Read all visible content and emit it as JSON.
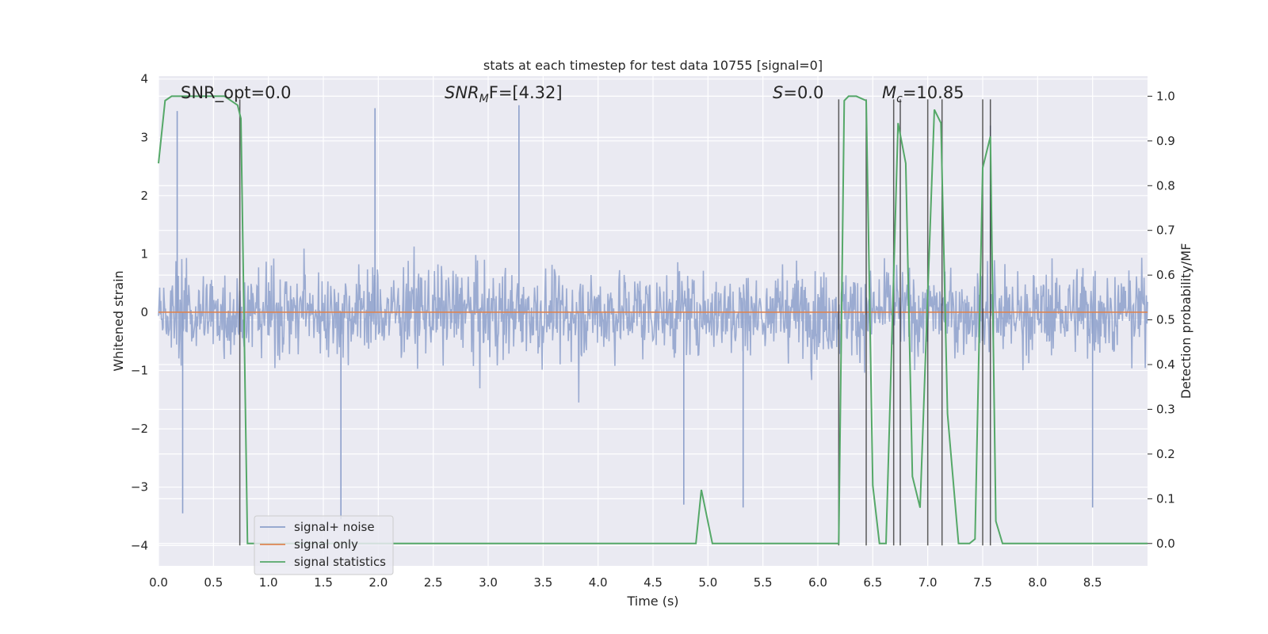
{
  "chart_data": {
    "type": "line",
    "title": "stats at each timestep for test data 10755 [signal=0]",
    "xlabel": "Time (s)",
    "ylabel": "Whitened strain",
    "y2label": "Detection probability/MF",
    "xlim": [
      0.0,
      9.0
    ],
    "ylim": [
      -4.35,
      4.05
    ],
    "y2lim": [
      -0.05,
      1.045
    ],
    "xticks": [
      "0.0",
      "0.5",
      "1.0",
      "1.5",
      "2.0",
      "2.5",
      "3.0",
      "3.5",
      "4.0",
      "4.5",
      "5.0",
      "5.5",
      "6.0",
      "6.5",
      "7.0",
      "7.5",
      "8.0",
      "8.5"
    ],
    "yticks": [
      "4",
      "3",
      "2",
      "1",
      "0",
      "−1",
      "−2",
      "−3",
      "−4"
    ],
    "y2ticks": [
      "1.0",
      "0.9",
      "0.8",
      "0.7",
      "0.6",
      "0.5",
      "0.4",
      "0.3",
      "0.2",
      "0.1",
      "0.0"
    ],
    "grid": true,
    "legend_position": "lower-left",
    "annotations": {
      "snr_opt": "SNR_opt=0.0",
      "snr_mf_main": "SNR",
      "snr_mf_sub": "M",
      "snr_mf_rest": "F=[4.32]",
      "s_main": "S",
      "s_rest": "=0.0",
      "mc_main": "M",
      "mc_sub": "c",
      "mc_rest": "=10.85"
    },
    "series": [
      {
        "name": "signal+ noise",
        "color": "#8da0cb",
        "description_of_values": "whitened noise, roughly zero-mean, core band about ±1.3, spikes up to about 3.4 and down to about -3.4",
        "core_amplitude": 1.35,
        "spike_max": [
          3.45,
          -3.45
        ],
        "highlight_spikes": [
          {
            "x": 0.17,
            "y": 3.45
          },
          {
            "x": 0.22,
            "y": -3.45
          },
          {
            "x": 1.66,
            "y": -3.55
          },
          {
            "x": 1.97,
            "y": 3.5
          },
          {
            "x": 3.28,
            "y": 3.55
          },
          {
            "x": 4.78,
            "y": -3.3
          },
          {
            "x": 5.32,
            "y": -3.35
          },
          {
            "x": 7.57,
            "y": 3.2
          },
          {
            "x": 8.5,
            "y": -3.35
          }
        ]
      },
      {
        "name": "signal only",
        "color": "#dd8452",
        "x": [
          0.0,
          9.0
        ],
        "y": [
          0.0,
          0.0
        ]
      },
      {
        "name": "signal statistics",
        "color": "#55a868",
        "axis": "right",
        "x": [
          0.0,
          0.06,
          0.12,
          0.6,
          0.72,
          0.75,
          0.81,
          4.86,
          4.89,
          4.94,
          5.04,
          6.19,
          6.24,
          6.28,
          6.35,
          6.44,
          6.5,
          6.56,
          6.62,
          6.73,
          6.8,
          6.86,
          6.93,
          7.06,
          7.12,
          7.18,
          7.28,
          7.38,
          7.43,
          7.5,
          7.57,
          7.62,
          7.68,
          9.0
        ],
        "y": [
          0.85,
          0.99,
          1.0,
          1.0,
          0.98,
          0.95,
          0.0,
          0.0,
          0.0,
          0.12,
          0.0,
          0.0,
          0.99,
          1.0,
          1.0,
          0.99,
          0.13,
          0.0,
          0.0,
          0.94,
          0.85,
          0.15,
          0.08,
          0.97,
          0.94,
          0.29,
          0.0,
          0.0,
          0.01,
          0.84,
          0.91,
          0.05,
          0.0,
          0.0
        ]
      }
    ],
    "vertical_markers": {
      "color": "#333333",
      "x": [
        0.74,
        6.19,
        6.44,
        6.69,
        6.75,
        7.0,
        7.13,
        7.5,
        7.57
      ],
      "y_top": [
        3.65,
        3.65,
        3.65,
        3.65,
        3.65,
        3.65,
        3.65,
        3.65,
        3.65
      ]
    }
  }
}
